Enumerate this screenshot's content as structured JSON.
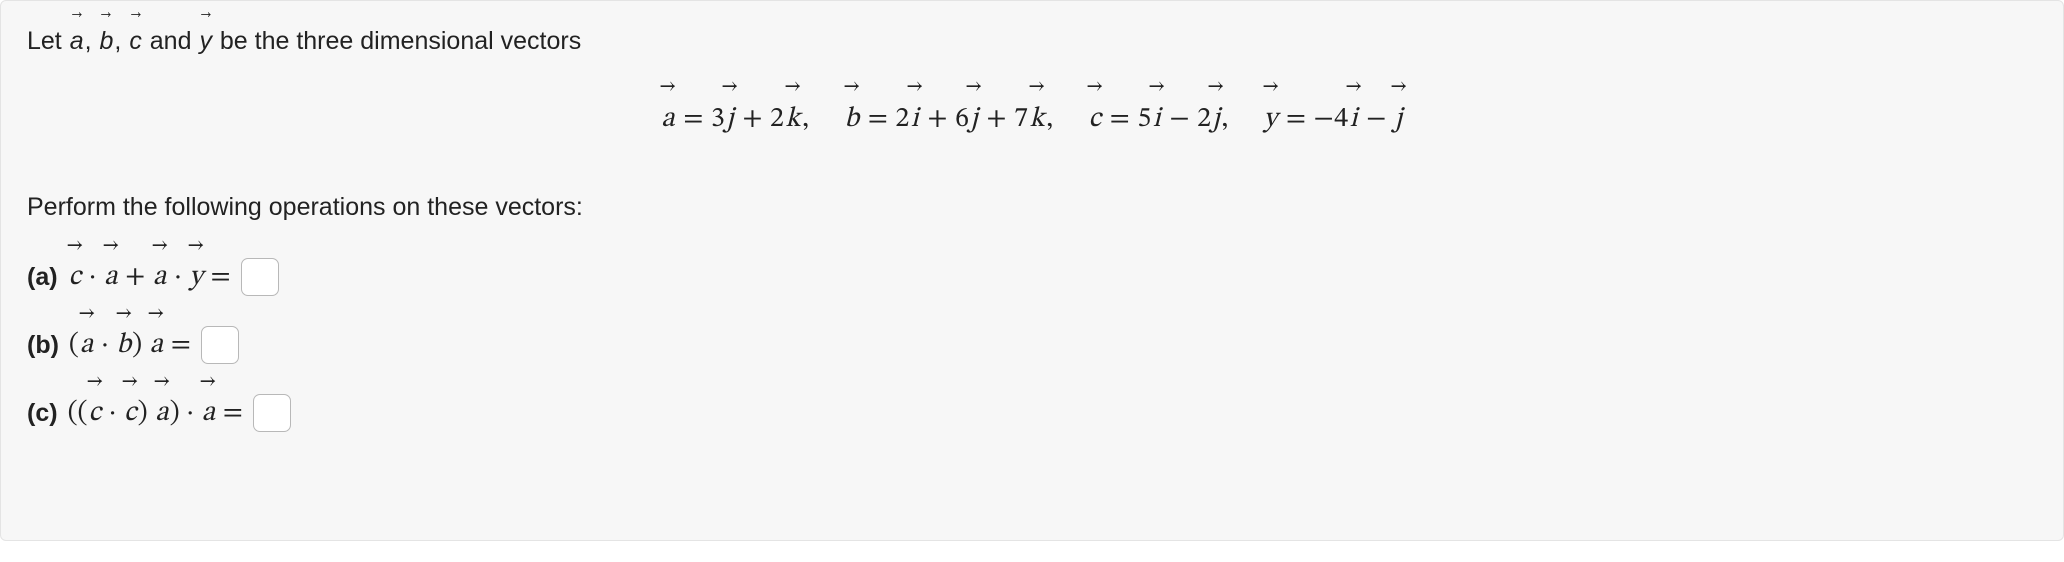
{
  "intro_prefix": "Let ",
  "intro_suffix": " be the three dimensional vectors",
  "intro_and": " and ",
  "comma": ", ",
  "var_a": "a",
  "var_b": "b",
  "var_c": "c",
  "var_y": "y",
  "unit_i": "i",
  "unit_j": "j",
  "unit_k": "k",
  "eq_a_1": " = 3",
  "eq_a_2": " + 2",
  "eq_a_3": ",",
  "eq_b_1": " = 2",
  "eq_b_2": " + 6",
  "eq_b_3": " + 7",
  "eq_b_4": ",",
  "eq_c_1": " = 5",
  "eq_c_2": " − 2",
  "eq_c_3": ",",
  "eq_y_1": " = −4",
  "eq_y_2": " − ",
  "perform": "Perform the following operations on these vectors:",
  "qa_label": "(a)",
  "qb_label": "(b)",
  "qc_label": "(c)",
  "dot": " · ",
  "plus": " + ",
  "equals": " = ",
  "lparen": "(",
  "rparen": ")",
  "dlparen": "((",
  "drparen": ")"
}
